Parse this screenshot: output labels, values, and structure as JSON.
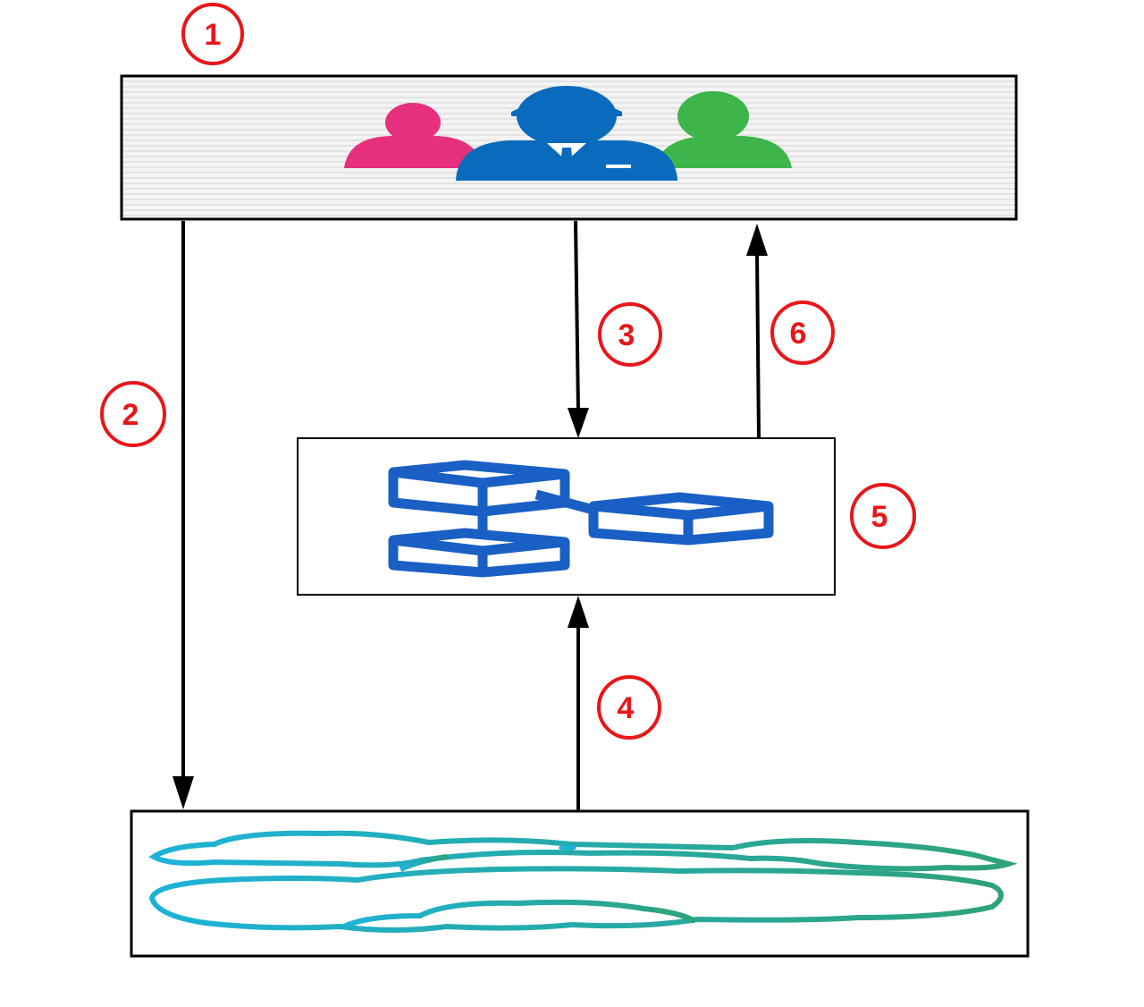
{
  "badges": [
    "1",
    "2",
    "3",
    "4",
    "5",
    "6"
  ],
  "colors": {
    "badge": "#e8161a",
    "stroke": "#000000",
    "user_female": "#e6307e",
    "user_male": "#0a6bbd",
    "user_right": "#3db54a",
    "blocks": "#1a5fc4",
    "cloud_left": "#1db3d8",
    "cloud_right": "#2fa27a"
  },
  "icons": {
    "users": "users-group-icon",
    "service": "blocks-network-icon",
    "storage": "cloud-icon"
  }
}
